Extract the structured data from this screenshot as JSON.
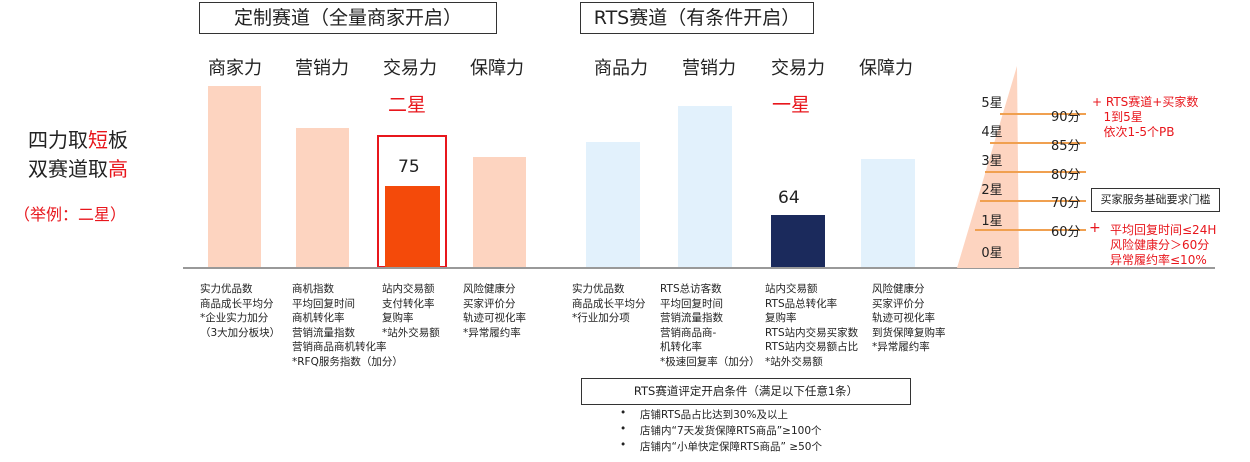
{
  "left": {
    "line1_pre": "四力取",
    "line1_em": "短",
    "line1_post": "板",
    "line2_pre": "双赛道取",
    "line2_em": "高",
    "example": "（举例：二星）"
  },
  "custom_track": {
    "title": "定制赛道（全量商家开启）",
    "columns": [
      "商家力",
      "营销力",
      "交易力",
      "保障力"
    ],
    "star_label": "二星",
    "highlight_value": "75",
    "metrics": [
      "实力优品数\n商品成长平均分\n*企业实力加分\n（3大加分板块）",
      "商机指数\n平均回复时间\n商机转化率\n营销流量指数\n营销商品商机转化率\n*RFQ服务指数（加分）",
      "站内交易额\n支付转化率\n复购率\n*站外交易额",
      "风险健康分\n买家评价分\n轨迹可视化率\n*异常履约率"
    ]
  },
  "rts_track": {
    "title": "RTS赛道（有条件开启）",
    "columns": [
      "商品力",
      "营销力",
      "交易力",
      "保障力"
    ],
    "star_label": "一星",
    "highlight_value": "64",
    "metrics": [
      "实力优品数\n商品成长平均分\n*行业加分项",
      "RTS总访客数\n平均回复时间\n营销流量指数\n营销商品商-\n机转化率\n*极速回复率（加分）",
      "站内交易额\nRTS品总转化率\n复购率\nRTS站内交易买家数\nRTS站内交易额占比\n*站外交易额",
      "风险健康分\n买家评价分\n轨迹可视化率\n到货保障复购率\n*异常履约率"
    ],
    "condition_title": "RTS赛道评定开启条件（满足以下任意1条）",
    "conditions": [
      "店铺RTS品占比达到30%及以上",
      "店铺内“7天发货保障RTS商品”≥100个",
      "店铺内“小单快定保障RTS商品” ≥50个"
    ]
  },
  "scale": {
    "stars": [
      "5星",
      "4星",
      "3星",
      "2星",
      "1星",
      "0星"
    ],
    "scores": [
      "90分",
      "85分",
      "80分",
      "70分",
      "60分"
    ],
    "note_top": "+ RTS赛道+买家数\n   1到5星\n   依次1-5个PB",
    "threshold_label": "买家服务基础要求门槛",
    "note_bottom_plus": "+",
    "note_bottom": "平均回复时间≤24H\n风险健康分＞60分\n异常履约率≤10%"
  },
  "colors": {
    "peach": "#fdd4c0",
    "orange_red": "#f44a0a",
    "light_blue": "#e2f1fc",
    "navy": "#1b2a5c",
    "red": "#e8161c"
  }
}
